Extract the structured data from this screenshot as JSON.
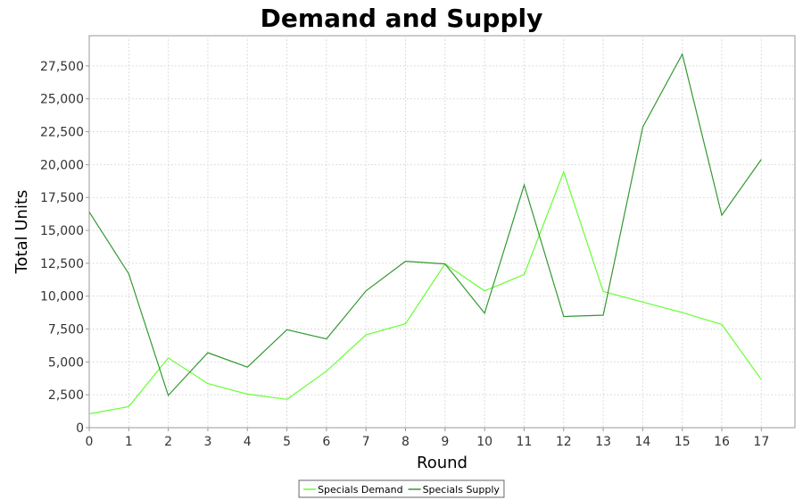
{
  "chart_data": {
    "type": "line",
    "title": "Demand and Supply",
    "xlabel": "Round",
    "ylabel": "Total Units",
    "x": [
      0,
      1,
      2,
      3,
      4,
      5,
      6,
      7,
      8,
      9,
      10,
      11,
      12,
      13,
      14,
      15,
      16,
      17
    ],
    "xlim": [
      0,
      17.85
    ],
    "ylim": [
      0,
      29800
    ],
    "xticks": [
      "0",
      "1",
      "2",
      "3",
      "4",
      "5",
      "6",
      "7",
      "8",
      "9",
      "10",
      "11",
      "12",
      "13",
      "14",
      "15",
      "16",
      "17"
    ],
    "yticks": [
      {
        "value": 0,
        "label": "0"
      },
      {
        "value": 2500,
        "label": "2,500"
      },
      {
        "value": 5000,
        "label": "5,000"
      },
      {
        "value": 7500,
        "label": "7,500"
      },
      {
        "value": 10000,
        "label": "10,000"
      },
      {
        "value": 12500,
        "label": "12,500"
      },
      {
        "value": 15000,
        "label": "15,000"
      },
      {
        "value": 17500,
        "label": "17,500"
      },
      {
        "value": 20000,
        "label": "20,000"
      },
      {
        "value": 22500,
        "label": "22,500"
      },
      {
        "value": 25000,
        "label": "25,000"
      },
      {
        "value": 27500,
        "label": "27,500"
      }
    ],
    "grid": true,
    "legend_position": "bottom",
    "series": [
      {
        "name": "Specials Demand",
        "color": "#66ff33",
        "values": [
          1050,
          1600,
          5300,
          3350,
          2550,
          2150,
          4300,
          7050,
          7900,
          12450,
          10400,
          11650,
          19450,
          10350,
          9550,
          8750,
          7850,
          3650
        ]
      },
      {
        "name": "Specials Supply",
        "color": "#339933",
        "values": [
          16400,
          11700,
          2450,
          5700,
          4600,
          7450,
          6750,
          10400,
          12650,
          12450,
          8700,
          18450,
          8450,
          8550,
          22850,
          28400,
          16150,
          20400
        ]
      }
    ]
  }
}
